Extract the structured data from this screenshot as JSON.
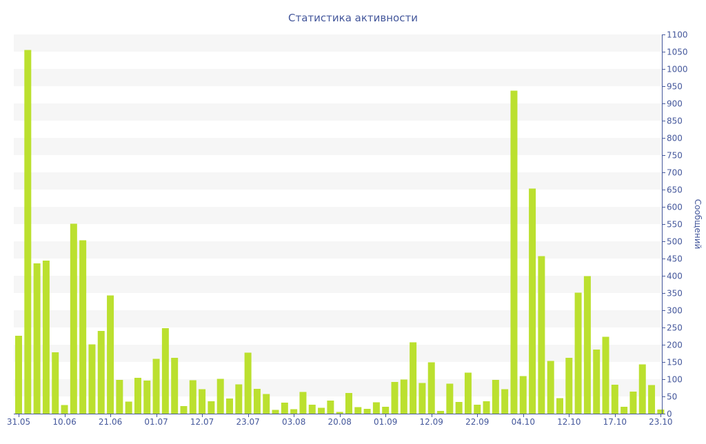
{
  "chart_data": {
    "type": "bar",
    "title": "Статистика активности",
    "xlabel": "",
    "ylabel": "Сообщений",
    "ylim": [
      0,
      1100
    ],
    "y_ticks": [
      0,
      50,
      100,
      150,
      200,
      250,
      300,
      350,
      400,
      450,
      500,
      550,
      600,
      650,
      700,
      750,
      800,
      850,
      900,
      950,
      1000,
      1050,
      1100
    ],
    "y_axis_side": "right",
    "grid": "alternating horizontal bands",
    "legend": "none",
    "x_tick_labels": [
      {
        "label": "31.05",
        "bar_index": 0
      },
      {
        "label": "10.06",
        "bar_index": 5
      },
      {
        "label": "21.06",
        "bar_index": 10
      },
      {
        "label": "01.07",
        "bar_index": 15
      },
      {
        "label": "12.07",
        "bar_index": 20
      },
      {
        "label": "23.07",
        "bar_index": 25
      },
      {
        "label": "03.08",
        "bar_index": 30
      },
      {
        "label": "20.08",
        "bar_index": 35
      },
      {
        "label": "01.09",
        "bar_index": 40
      },
      {
        "label": "12.09",
        "bar_index": 45
      },
      {
        "label": "22.09",
        "bar_index": 50
      },
      {
        "label": "04.10",
        "bar_index": 55
      },
      {
        "label": "12.10",
        "bar_index": 60
      },
      {
        "label": "17.10",
        "bar_index": 65
      },
      {
        "label": "23.10",
        "bar_index": 70
      }
    ],
    "values": [
      226,
      1055,
      436,
      444,
      178,
      25,
      551,
      503,
      201,
      240,
      343,
      98,
      35,
      104,
      96,
      159,
      248,
      162,
      22,
      97,
      71,
      36,
      101,
      44,
      85,
      177,
      72,
      57,
      11,
      32,
      13,
      63,
      26,
      17,
      38,
      5,
      60,
      19,
      14,
      33,
      20,
      92,
      99,
      207,
      89,
      149,
      8,
      87,
      34,
      119,
      26,
      36,
      98,
      71,
      937,
      109,
      653,
      457,
      153,
      45,
      162,
      351,
      399,
      186,
      223,
      84,
      20,
      64,
      143,
      83,
      12
    ]
  },
  "colors": {
    "bar": "#bbe02f",
    "band": "#f6f6f6",
    "axis_text": "#44579b",
    "title": "#44579b",
    "axis_line": "#44579b"
  }
}
